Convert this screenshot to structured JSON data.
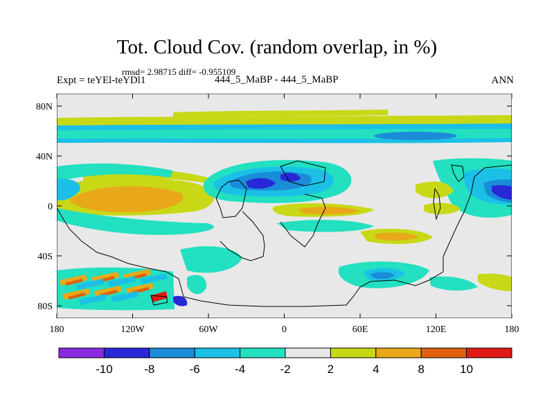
{
  "chart_data": {
    "type": "heatmap",
    "title": "Tot. Cloud Cov. (random overlap, in %)",
    "stats": "rmsd= 2.98715 diff= -0.955109",
    "left_label": "Expt = teYEl-teYDl1",
    "center_label": "444_5_MaBP - 444_5_MaBP",
    "right_label": "ANN",
    "x_ticks": [
      "180",
      "120W",
      "60W",
      "0",
      "60E",
      "120E",
      "180"
    ],
    "y_ticks": [
      "80N",
      "40N",
      "0",
      "40S",
      "80S"
    ],
    "xlim": [
      -180,
      180
    ],
    "ylim": [
      -90,
      90
    ],
    "colorbar": {
      "labels": [
        "-10",
        "-8",
        "-6",
        "-4",
        "-2",
        "2",
        "4",
        "8",
        "10"
      ],
      "levels": [
        -10,
        -8,
        -6,
        -4,
        -2,
        2,
        4,
        8,
        10
      ],
      "colors": [
        "#8a2be2",
        "#2828d8",
        "#1a8cd8",
        "#1cc0e6",
        "#22e0c0",
        "#e8e8e8",
        "#c8d816",
        "#e8a81a",
        "#e06010",
        "#e01a14"
      ]
    },
    "features": [
      {
        "name": "arctic-negative-band",
        "lon": [
          -180,
          180
        ],
        "lat": [
          48,
          72
        ],
        "value": -4
      },
      {
        "name": "arctic-positive-band",
        "lon": [
          -180,
          180
        ],
        "lat": [
          60,
          68
        ],
        "value": 3
      },
      {
        "name": "east-pacific-positive",
        "lon": [
          -165,
          -95
        ],
        "lat": [
          -5,
          20
        ],
        "value": 6
      },
      {
        "name": "amazon-africa-negative",
        "lon": [
          -60,
          30
        ],
        "lat": [
          0,
          30
        ],
        "value": -6
      },
      {
        "name": "indian-ocean-positive",
        "lon": [
          20,
          75
        ],
        "lat": [
          -15,
          5
        ],
        "value": 4
      },
      {
        "name": "west-pacific-negative",
        "lon": [
          145,
          180
        ],
        "lat": [
          -5,
          25
        ],
        "value": -8
      },
      {
        "name": "southern-ocean-wave-pattern",
        "lon": [
          -180,
          -80
        ],
        "lat": [
          -85,
          -50
        ],
        "value": 6
      },
      {
        "name": "antarctic-negative",
        "lon": [
          50,
          80
        ],
        "lat": [
          -70,
          -55
        ],
        "value": -5
      }
    ]
  }
}
